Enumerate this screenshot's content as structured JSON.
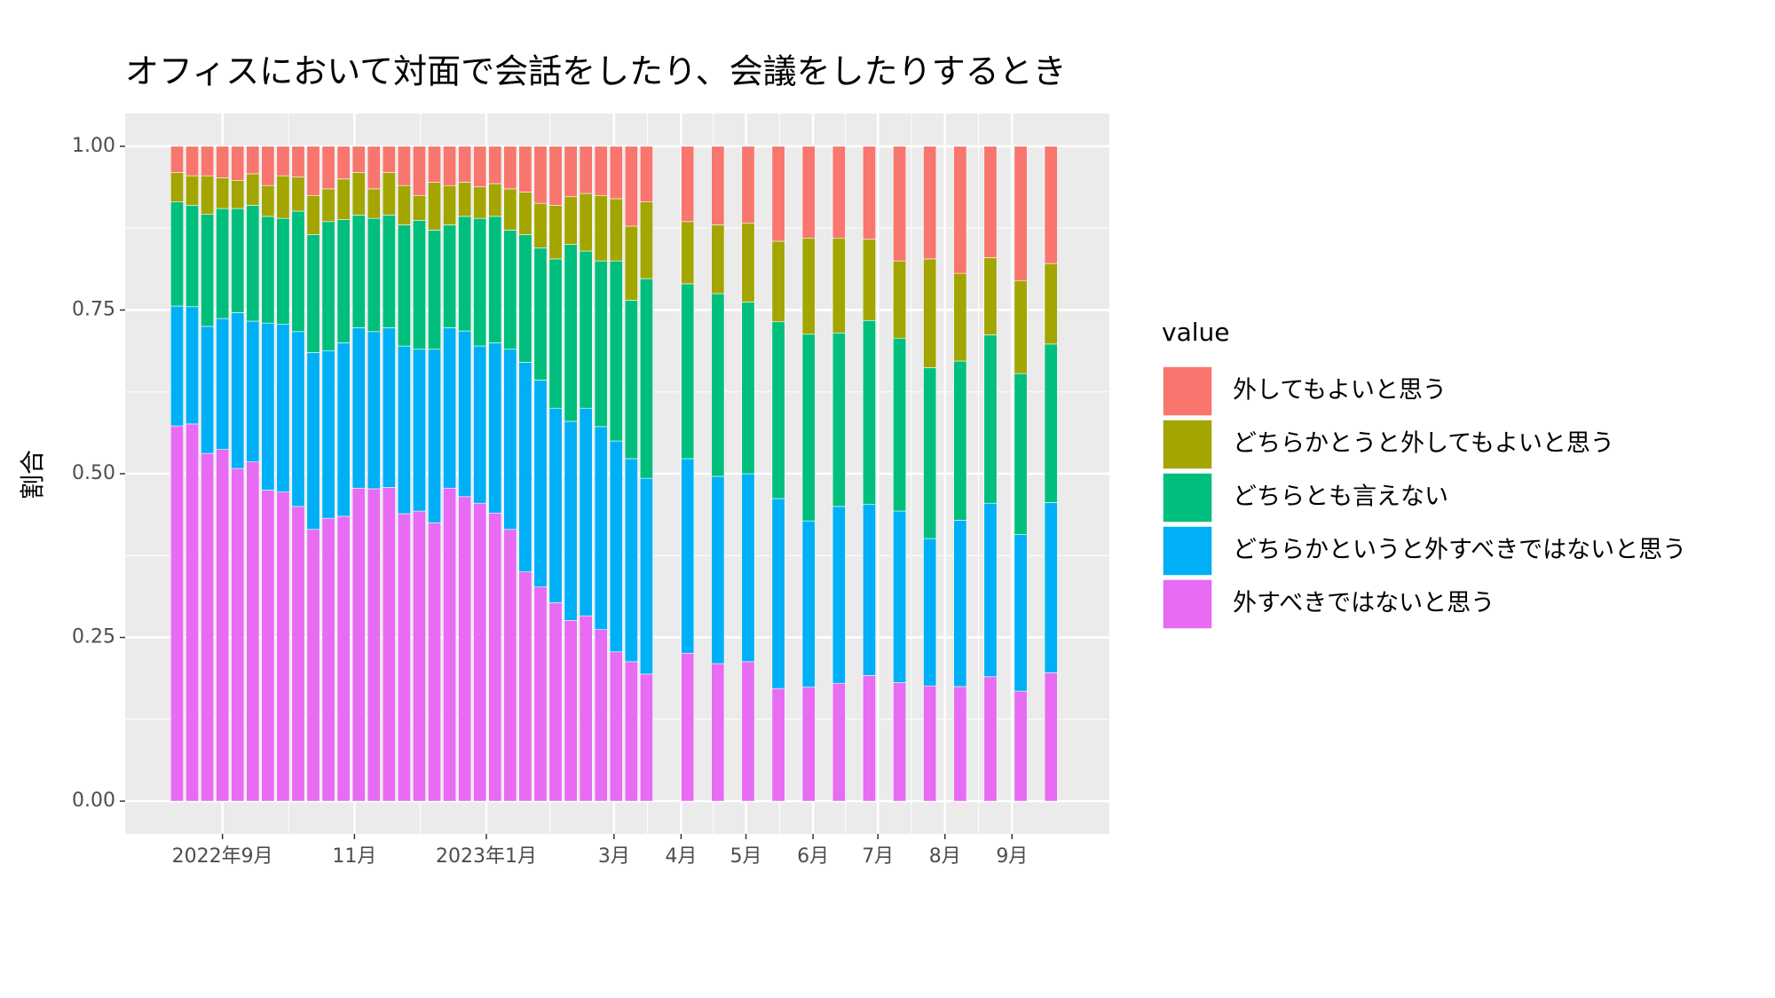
{
  "chart_data": {
    "type": "bar",
    "stacked": true,
    "title": "オフィスにおいて対面で会話をしたり、会議をしたりするとき",
    "y_label": "割合",
    "legend_title": "value",
    "x": [
      -21,
      -14,
      -7,
      0,
      7,
      14,
      21,
      28,
      35,
      42,
      49,
      56,
      63,
      70,
      77,
      84,
      91,
      98,
      105,
      112,
      119,
      126,
      133,
      140,
      147,
      154,
      161,
      168,
      175,
      182,
      189,
      196,
      215,
      229,
      243,
      257,
      271,
      285,
      299,
      313,
      327,
      341,
      355,
      369,
      383
    ],
    "series": [
      {
        "name": "外してもよいと思う",
        "color": "#F8766D",
        "values": [
          0.04,
          0.045,
          0.045,
          0.048,
          0.052,
          0.042,
          0.06,
          0.045,
          0.047,
          0.075,
          0.065,
          0.05,
          0.04,
          0.065,
          0.04,
          0.06,
          0.075,
          0.055,
          0.06,
          0.055,
          0.062,
          0.057,
          0.065,
          0.07,
          0.087,
          0.09,
          0.077,
          0.072,
          0.075,
          0.08,
          0.122,
          0.085,
          0.115,
          0.12,
          0.117,
          0.145,
          0.14,
          0.14,
          0.142,
          0.175,
          0.172,
          0.194,
          0.17,
          0.205,
          0.179
        ]
      },
      {
        "name": "どちらかとうと外してもよいと思う",
        "color": "#A3A500",
        "values": [
          0.045,
          0.045,
          0.059,
          0.047,
          0.043,
          0.048,
          0.047,
          0.065,
          0.052,
          0.06,
          0.05,
          0.062,
          0.065,
          0.045,
          0.065,
          0.06,
          0.038,
          0.073,
          0.06,
          0.052,
          0.048,
          0.05,
          0.063,
          0.065,
          0.068,
          0.082,
          0.073,
          0.088,
          0.1,
          0.095,
          0.113,
          0.117,
          0.095,
          0.105,
          0.121,
          0.123,
          0.147,
          0.145,
          0.124,
          0.118,
          0.166,
          0.134,
          0.118,
          0.142,
          0.123
        ]
      },
      {
        "name": "どちらとも言えない",
        "color": "#00BF7D",
        "values": [
          0.159,
          0.155,
          0.171,
          0.168,
          0.159,
          0.177,
          0.163,
          0.162,
          0.184,
          0.18,
          0.197,
          0.188,
          0.172,
          0.173,
          0.172,
          0.185,
          0.197,
          0.182,
          0.157,
          0.175,
          0.195,
          0.193,
          0.182,
          0.195,
          0.202,
          0.228,
          0.27,
          0.24,
          0.253,
          0.275,
          0.242,
          0.305,
          0.267,
          0.279,
          0.262,
          0.27,
          0.285,
          0.265,
          0.281,
          0.264,
          0.261,
          0.243,
          0.257,
          0.246,
          0.242
        ]
      },
      {
        "name": "どちらかというと外すべきではないと思う",
        "color": "#00B0F6",
        "values": [
          0.183,
          0.179,
          0.194,
          0.2,
          0.238,
          0.215,
          0.255,
          0.256,
          0.267,
          0.27,
          0.256,
          0.265,
          0.245,
          0.24,
          0.244,
          0.256,
          0.247,
          0.265,
          0.245,
          0.253,
          0.24,
          0.26,
          0.275,
          0.32,
          0.316,
          0.297,
          0.304,
          0.317,
          0.31,
          0.322,
          0.31,
          0.299,
          0.297,
          0.286,
          0.287,
          0.29,
          0.254,
          0.27,
          0.261,
          0.262,
          0.225,
          0.254,
          0.265,
          0.239,
          0.26
        ]
      },
      {
        "name": "外すべきではないと思う",
        "color": "#E76BF3",
        "values": [
          0.573,
          0.576,
          0.531,
          0.537,
          0.508,
          0.518,
          0.475,
          0.472,
          0.45,
          0.415,
          0.432,
          0.435,
          0.478,
          0.477,
          0.479,
          0.439,
          0.443,
          0.425,
          0.478,
          0.465,
          0.455,
          0.44,
          0.415,
          0.35,
          0.327,
          0.303,
          0.276,
          0.283,
          0.262,
          0.228,
          0.213,
          0.194,
          0.226,
          0.21,
          0.213,
          0.172,
          0.174,
          0.18,
          0.192,
          0.181,
          0.176,
          0.175,
          0.19,
          0.168,
          0.196
        ]
      }
    ],
    "xlim": [
      -45,
      410
    ],
    "xticks": [
      {
        "value": 0,
        "label": "2022年9月"
      },
      {
        "value": 61,
        "label": "11月"
      },
      {
        "value": 122,
        "label": "2023年1月"
      },
      {
        "value": 181,
        "label": "3月"
      },
      {
        "value": 212,
        "label": "4月"
      },
      {
        "value": 242,
        "label": "5月"
      },
      {
        "value": 273,
        "label": "6月"
      },
      {
        "value": 303,
        "label": "7月"
      },
      {
        "value": 334,
        "label": "8月"
      },
      {
        "value": 365,
        "label": "9月"
      }
    ],
    "ylim": [
      -0.05,
      1.05
    ],
    "yticks": [
      {
        "value": 0,
        "label": "0.00"
      },
      {
        "value": 0.25,
        "label": "0.25"
      },
      {
        "value": 0.5,
        "label": "0.50"
      },
      {
        "value": 0.75,
        "label": "0.75"
      },
      {
        "value": 1,
        "label": "1.00"
      }
    ],
    "grid": true,
    "legend_position": "right"
  }
}
